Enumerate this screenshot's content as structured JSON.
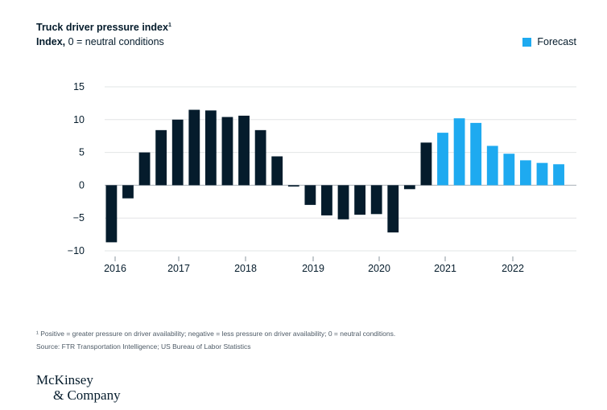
{
  "chart_data": {
    "type": "bar",
    "title": "Truck driver pressure index",
    "title_footnote_marker": "1",
    "subtitle_bold": "Index,",
    "subtitle_rest": " 0 = neutral conditions",
    "legend": [
      {
        "name": "Forecast",
        "color": "#1eaaf0"
      }
    ],
    "ylim": [
      -10,
      15
    ],
    "yticks": [
      15,
      10,
      5,
      0,
      -5,
      -10
    ],
    "ytick_labels": [
      "15",
      "10",
      "5",
      "0",
      "−5",
      "−10"
    ],
    "xticks": [
      "2016",
      "2017",
      "2018",
      "2019",
      "2020",
      "2021",
      "2022"
    ],
    "grid": true,
    "series": [
      {
        "values": [
          -8.7,
          -2.0,
          5.0,
          8.4,
          10.0,
          11.5,
          11.4,
          10.4,
          10.6,
          8.4,
          4.4,
          -0.2,
          -3.0,
          -4.6,
          -5.2,
          -4.5,
          -4.4,
          -7.2,
          -0.6,
          6.5
        ],
        "color": "#051c2c"
      },
      {
        "name": "Forecast",
        "values": [
          8.0,
          10.2,
          9.5,
          6.0,
          4.8,
          3.8,
          3.4,
          3.2
        ],
        "color": "#1eaaf0"
      }
    ]
  },
  "footnote": "¹ Positive = greater pressure on driver availability; negative = less pressure on driver availability; 0 = neutral conditions.",
  "source": "Source: FTR Transportation Intelligence; US Bureau of Labor Statistics",
  "logo": {
    "line1": "McKinsey",
    "line2": "& Company"
  }
}
